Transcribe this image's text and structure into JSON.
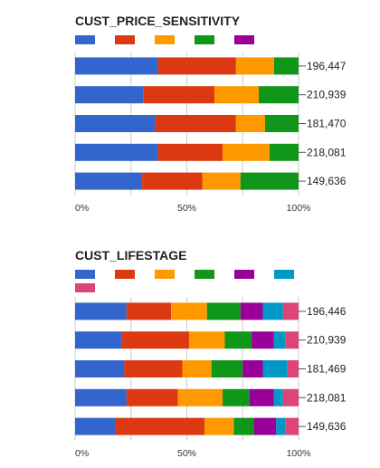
{
  "charts": [
    {
      "chart_data": {
        "type": "bar",
        "orientation": "horizontal",
        "stacked": "percent",
        "title": "CUST_PRICE_SENSITIVITY",
        "row_labels": [
          "196,447",
          "210,939",
          "181,470",
          "218,081",
          "149,636"
        ],
        "xlim": [
          0,
          100
        ],
        "x_ticks": [
          "0%",
          "50%",
          "100%"
        ],
        "grid": true,
        "legend_placement": "top-left",
        "series": [
          {
            "color": "#3366cc",
            "values": [
              37,
              31,
              36,
              37,
              30
            ]
          },
          {
            "color": "#dc3912",
            "values": [
              35,
              32,
              36,
              29,
              27
            ]
          },
          {
            "color": "#ff9900",
            "values": [
              17,
              20,
              13,
              21,
              17
            ]
          },
          {
            "color": "#109618",
            "values": [
              11,
              18,
              15,
              13,
              26
            ]
          },
          {
            "color": "#990099",
            "values": [
              0,
              0,
              0,
              0,
              0
            ]
          }
        ]
      }
    },
    {
      "chart_data": {
        "type": "bar",
        "orientation": "horizontal",
        "stacked": "percent",
        "title": "CUST_LIFESTAGE",
        "row_labels": [
          "196,446",
          "210,939",
          "181,469",
          "218,081",
          "149,636"
        ],
        "xlim": [
          0,
          100
        ],
        "x_ticks": [
          "0%",
          "50%",
          "100%"
        ],
        "grid": true,
        "legend_placement": "top-left",
        "series": [
          {
            "color": "#3366cc",
            "values": [
              23,
              21,
              22,
              23,
              18
            ]
          },
          {
            "color": "#dc3912",
            "values": [
              20,
              30,
              26,
              23,
              40
            ]
          },
          {
            "color": "#ff9900",
            "values": [
              16,
              16,
              13,
              20,
              13
            ]
          },
          {
            "color": "#109618",
            "values": [
              15,
              12,
              14,
              12,
              9
            ]
          },
          {
            "color": "#990099",
            "values": [
              10,
              10,
              9,
              11,
              10
            ]
          },
          {
            "color": "#0099c6",
            "values": [
              9,
              5,
              11,
              4,
              4
            ]
          },
          {
            "color": "#dd4477",
            "values": [
              7,
              6,
              5,
              7,
              6
            ]
          }
        ]
      }
    }
  ]
}
